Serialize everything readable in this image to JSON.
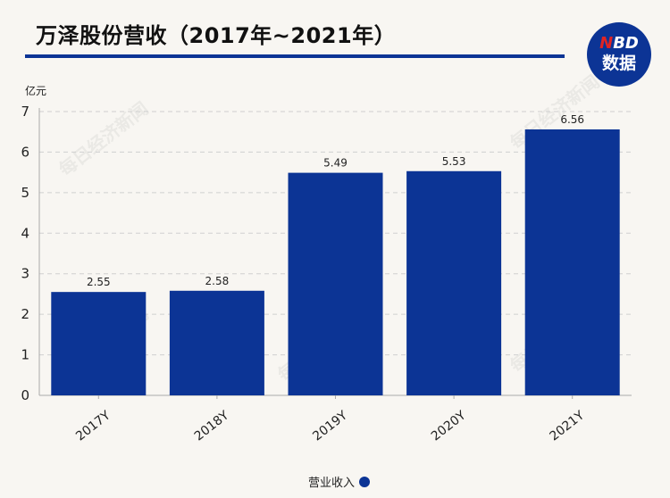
{
  "title": "万泽股份营收（2017年~2021年）",
  "logo": {
    "text_top_red": "N",
    "text_top_rest": "BD",
    "text_bottom": "数据"
  },
  "watermark_text": "每日经济新闻",
  "colors": {
    "bar": "#0c3495",
    "accent": "#0c3495",
    "logo_red": "#e02424",
    "grid": "#cfcfcf"
  },
  "chart_data": {
    "type": "bar",
    "title": "万泽股份营收（2017年~2021年）",
    "ylabel": "亿元",
    "categories": [
      "2017Y",
      "2018Y",
      "2019Y",
      "2020Y",
      "2021Y"
    ],
    "series": [
      {
        "name": "营业收入",
        "values": [
          2.55,
          2.58,
          5.49,
          5.53,
          6.56
        ]
      }
    ],
    "data_labels": [
      "2.55",
      "2.58",
      "5.49",
      "5.53",
      "6.56"
    ],
    "ylim": [
      0,
      7
    ],
    "yticks": [
      0,
      1,
      2,
      3,
      4,
      5,
      6,
      7
    ],
    "grid": true,
    "legend": "bottom-center"
  }
}
